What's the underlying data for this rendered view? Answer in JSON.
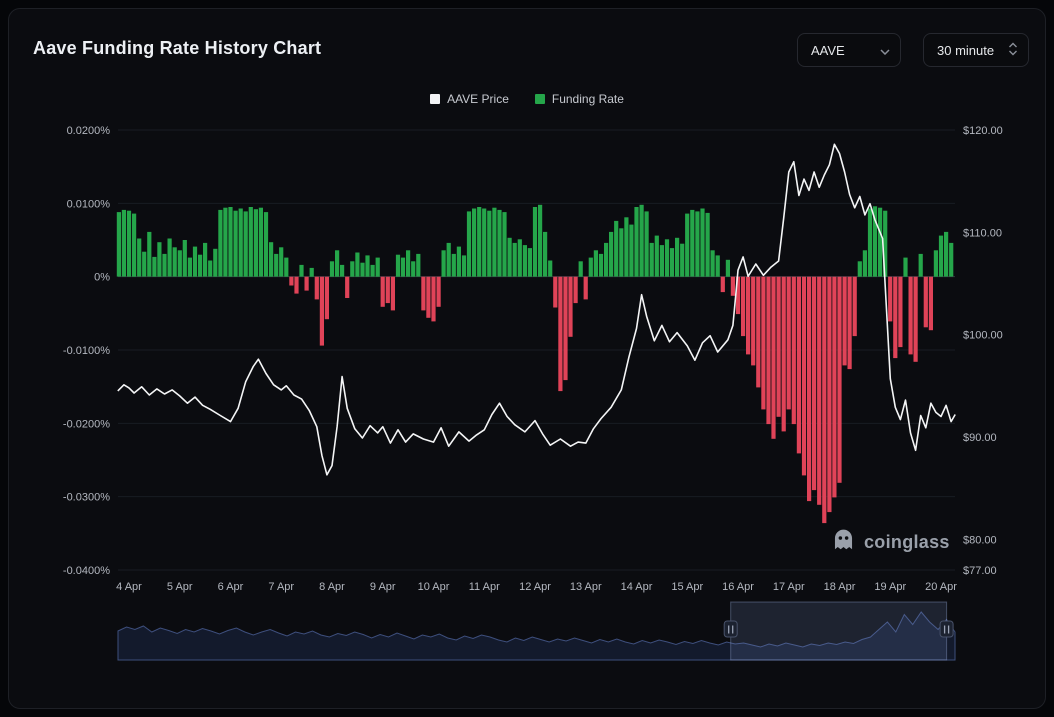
{
  "header": {
    "title": "Aave Funding Rate History Chart",
    "symbol_select": {
      "value": "AAVE"
    },
    "interval_select": {
      "value": "30 minute"
    }
  },
  "legend": [
    {
      "label": "AAVE Price",
      "color": "#f2f3f5"
    },
    {
      "label": "Funding Rate",
      "color": "#25a64a"
    }
  ],
  "watermark": {
    "text": "coinglass"
  },
  "chart_data": {
    "type": "mixed",
    "title": "Aave Funding Rate History Chart",
    "grid": "horizontal-faint",
    "legend_position": "top-center",
    "x_axis": {
      "tick_labels": [
        "4 Apr",
        "5 Apr",
        "6 Apr",
        "7 Apr",
        "8 Apr",
        "9 Apr",
        "10 Apr",
        "11 Apr",
        "12 Apr",
        "13 Apr",
        "14 Apr",
        "15 Apr",
        "16 Apr",
        "17 Apr",
        "18 Apr",
        "19 Apr",
        "20 Apr"
      ]
    },
    "left_axis": {
      "name": "Funding Rate",
      "ticks": [
        "0.0200%",
        "0.0100%",
        "0%",
        "-0.0100%",
        "-0.0200%",
        "-0.0300%",
        "-0.0400%"
      ],
      "tick_values": [
        0.02,
        0.01,
        0,
        -0.01,
        -0.02,
        -0.03,
        -0.04
      ],
      "min": -0.04,
      "max": 0.02
    },
    "right_axis": {
      "name": "AAVE Price",
      "ticks": [
        "$120.00",
        "$110.00",
        "$100.00",
        "$90.00",
        "$80.00",
        "$77.00"
      ],
      "tick_values": [
        120,
        110,
        100,
        90,
        80,
        77
      ],
      "min": 77,
      "max": 120
    },
    "series": [
      {
        "name": "AAVE Price",
        "type": "line",
        "axis": "right",
        "color": "#f4f5f6",
        "points": [
          [
            3.78,
            94.5
          ],
          [
            3.9,
            95.1
          ],
          [
            4.0,
            94.8
          ],
          [
            4.1,
            94.3
          ],
          [
            4.25,
            94.9
          ],
          [
            4.4,
            94.1
          ],
          [
            4.55,
            94.7
          ],
          [
            4.7,
            94.2
          ],
          [
            4.85,
            94.6
          ],
          [
            5.0,
            94.0
          ],
          [
            5.15,
            93.3
          ],
          [
            5.3,
            93.9
          ],
          [
            5.45,
            93.1
          ],
          [
            5.6,
            92.7
          ],
          [
            5.8,
            92.1
          ],
          [
            6.0,
            91.5
          ],
          [
            6.15,
            92.8
          ],
          [
            6.3,
            95.4
          ],
          [
            6.45,
            96.9
          ],
          [
            6.55,
            97.6
          ],
          [
            6.7,
            96.2
          ],
          [
            6.85,
            95.1
          ],
          [
            7.0,
            94.6
          ],
          [
            7.1,
            95.0
          ],
          [
            7.25,
            94.1
          ],
          [
            7.4,
            93.7
          ],
          [
            7.55,
            92.6
          ],
          [
            7.7,
            91.0
          ],
          [
            7.8,
            88.2
          ],
          [
            7.9,
            86.3
          ],
          [
            8.0,
            87.2
          ],
          [
            8.1,
            91.0
          ],
          [
            8.2,
            95.9
          ],
          [
            8.3,
            92.8
          ],
          [
            8.45,
            90.8
          ],
          [
            8.6,
            89.9
          ],
          [
            8.75,
            91.1
          ],
          [
            8.9,
            90.4
          ],
          [
            9.0,
            91.0
          ],
          [
            9.15,
            89.4
          ],
          [
            9.3,
            90.7
          ],
          [
            9.45,
            89.5
          ],
          [
            9.6,
            90.3
          ],
          [
            9.8,
            89.8
          ],
          [
            10.0,
            89.5
          ],
          [
            10.15,
            90.9
          ],
          [
            10.3,
            89.1
          ],
          [
            10.5,
            90.5
          ],
          [
            10.7,
            89.6
          ],
          [
            10.85,
            90.2
          ],
          [
            11.0,
            90.7
          ],
          [
            11.15,
            92.2
          ],
          [
            11.3,
            93.3
          ],
          [
            11.45,
            92.0
          ],
          [
            11.6,
            91.2
          ],
          [
            11.8,
            90.5
          ],
          [
            12.0,
            91.6
          ],
          [
            12.15,
            90.3
          ],
          [
            12.3,
            89.2
          ],
          [
            12.5,
            89.8
          ],
          [
            12.7,
            89.1
          ],
          [
            12.85,
            89.5
          ],
          [
            13.0,
            89.4
          ],
          [
            13.15,
            90.8
          ],
          [
            13.3,
            91.8
          ],
          [
            13.5,
            92.9
          ],
          [
            13.7,
            94.6
          ],
          [
            13.85,
            97.8
          ],
          [
            14.0,
            100.6
          ],
          [
            14.1,
            103.9
          ],
          [
            14.2,
            101.8
          ],
          [
            14.35,
            99.4
          ],
          [
            14.5,
            100.9
          ],
          [
            14.65,
            99.3
          ],
          [
            14.8,
            100.2
          ],
          [
            15.0,
            98.9
          ],
          [
            15.15,
            97.5
          ],
          [
            15.3,
            99.2
          ],
          [
            15.45,
            99.9
          ],
          [
            15.6,
            98.3
          ],
          [
            15.8,
            99.5
          ],
          [
            15.9,
            100.9
          ],
          [
            15.95,
            103.6
          ],
          [
            16.0,
            106.3
          ],
          [
            16.1,
            107.6
          ],
          [
            16.2,
            105.7
          ],
          [
            16.35,
            106.9
          ],
          [
            16.5,
            105.8
          ],
          [
            16.65,
            106.6
          ],
          [
            16.8,
            107.2
          ],
          [
            16.9,
            111.4
          ],
          [
            17.0,
            115.9
          ],
          [
            17.1,
            116.9
          ],
          [
            17.2,
            113.6
          ],
          [
            17.3,
            115.2
          ],
          [
            17.4,
            114.1
          ],
          [
            17.5,
            115.9
          ],
          [
            17.6,
            114.4
          ],
          [
            17.7,
            115.6
          ],
          [
            17.8,
            116.6
          ],
          [
            17.9,
            118.6
          ],
          [
            18.0,
            117.7
          ],
          [
            18.1,
            115.9
          ],
          [
            18.2,
            113.7
          ],
          [
            18.3,
            112.4
          ],
          [
            18.4,
            113.5
          ],
          [
            18.5,
            111.7
          ],
          [
            18.6,
            112.8
          ],
          [
            18.7,
            111.2
          ],
          [
            18.85,
            109.4
          ],
          [
            19.0,
            95.7
          ],
          [
            19.1,
            92.9
          ],
          [
            19.2,
            91.7
          ],
          [
            19.3,
            93.6
          ],
          [
            19.4,
            90.4
          ],
          [
            19.5,
            88.7
          ],
          [
            19.6,
            92.1
          ],
          [
            19.7,
            90.9
          ],
          [
            19.8,
            93.3
          ],
          [
            19.9,
            92.4
          ],
          [
            20.0,
            92.0
          ],
          [
            20.1,
            93.1
          ],
          [
            20.2,
            91.5
          ],
          [
            20.28,
            92.2
          ]
        ]
      },
      {
        "name": "Funding Rate",
        "type": "bar",
        "axis": "left",
        "color_positive": "#25a64a",
        "color_negative": "#e04358",
        "x_start_day": 3.8,
        "x_step_days": 0.1,
        "values_percent": [
          0.0088,
          0.0091,
          0.009,
          0.0086,
          0.0052,
          0.0034,
          0.0061,
          0.0027,
          0.0047,
          0.0031,
          0.0052,
          0.004,
          0.0036,
          0.005,
          0.0026,
          0.0041,
          0.003,
          0.0046,
          0.0022,
          0.0038,
          0.0091,
          0.0094,
          0.0095,
          0.009,
          0.0093,
          0.0089,
          0.0095,
          0.0092,
          0.0094,
          0.0088,
          0.0047,
          0.0031,
          0.004,
          0.0026,
          -0.0012,
          -0.0023,
          0.0016,
          -0.0019,
          0.0012,
          -0.0031,
          -0.0094,
          -0.0058,
          0.0021,
          0.0036,
          0.0016,
          -0.0029,
          0.0021,
          0.0033,
          0.0019,
          0.0029,
          0.0016,
          0.0026,
          -0.0041,
          -0.0036,
          -0.0046,
          0.003,
          0.0026,
          0.0036,
          0.0021,
          0.0031,
          -0.0046,
          -0.0056,
          -0.0061,
          -0.0041,
          0.0036,
          0.0046,
          0.0031,
          0.0041,
          0.0029,
          0.0089,
          0.0093,
          0.0095,
          0.0093,
          0.009,
          0.0094,
          0.0091,
          0.0088,
          0.0053,
          0.0046,
          0.0051,
          0.0043,
          0.0039,
          0.0095,
          0.0098,
          0.0061,
          0.0022,
          -0.0042,
          -0.0156,
          -0.0141,
          -0.0082,
          -0.0036,
          0.0021,
          -0.0031,
          0.0026,
          0.0036,
          0.0031,
          0.0046,
          0.0061,
          0.0076,
          0.0066,
          0.0081,
          0.0071,
          0.0095,
          0.0098,
          0.0089,
          0.0046,
          0.0056,
          0.0043,
          0.0051,
          0.0039,
          0.0053,
          0.0045,
          0.0086,
          0.0091,
          0.0089,
          0.0093,
          0.0087,
          0.0036,
          0.0029,
          -0.0021,
          0.0023,
          -0.0026,
          -0.0051,
          -0.0081,
          -0.0106,
          -0.0121,
          -0.0151,
          -0.0181,
          -0.0201,
          -0.0221,
          -0.0191,
          -0.0211,
          -0.0181,
          -0.0201,
          -0.0241,
          -0.0271,
          -0.0306,
          -0.0291,
          -0.0311,
          -0.0336,
          -0.0321,
          -0.0301,
          -0.0281,
          -0.0121,
          -0.0126,
          -0.0081,
          0.0021,
          0.0036,
          0.0093,
          0.0096,
          0.0094,
          0.009,
          -0.0061,
          -0.0111,
          -0.0096,
          0.0026,
          -0.0106,
          -0.0116,
          0.0031,
          -0.0069,
          -0.0073,
          0.0036,
          0.0056,
          0.0061,
          0.0046
        ]
      }
    ]
  },
  "navigator": {
    "selection": {
      "start": 0.732,
      "end": 0.99
    },
    "values": [
      0.52,
      0.6,
      0.55,
      0.62,
      0.5,
      0.58,
      0.53,
      0.47,
      0.55,
      0.5,
      0.57,
      0.52,
      0.46,
      0.53,
      0.58,
      0.5,
      0.44,
      0.5,
      0.55,
      0.48,
      0.42,
      0.5,
      0.46,
      0.52,
      0.44,
      0.4,
      0.47,
      0.43,
      0.5,
      0.45,
      0.38,
      0.45,
      0.4,
      0.48,
      0.42,
      0.36,
      0.44,
      0.4,
      0.46,
      0.38,
      0.34,
      0.42,
      0.37,
      0.44,
      0.4,
      0.34,
      0.3,
      0.38,
      0.33,
      0.4,
      0.35,
      0.3,
      0.36,
      0.32,
      0.38,
      0.33,
      0.28,
      0.35,
      0.3,
      0.36,
      0.3,
      0.26,
      0.33,
      0.28,
      0.34,
      0.3,
      0.25,
      0.31,
      0.27,
      0.33,
      0.28,
      0.24,
      0.3,
      0.26,
      0.28,
      0.24,
      0.2,
      0.26,
      0.22,
      0.28,
      0.24,
      0.2,
      0.26,
      0.23,
      0.28,
      0.25,
      0.3,
      0.27,
      0.35,
      0.4,
      0.55,
      0.7,
      0.5,
      0.85,
      0.65,
      0.9,
      0.7,
      0.55,
      0.75,
      0.5
    ]
  }
}
